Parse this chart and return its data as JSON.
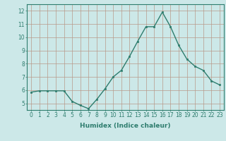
{
  "x": [
    0,
    1,
    2,
    3,
    4,
    5,
    6,
    7,
    8,
    9,
    10,
    11,
    12,
    13,
    14,
    15,
    16,
    17,
    18,
    19,
    20,
    21,
    22,
    23
  ],
  "y": [
    5.85,
    5.95,
    5.95,
    5.95,
    5.95,
    5.15,
    4.85,
    4.6,
    5.3,
    6.1,
    7.0,
    7.5,
    8.55,
    9.7,
    10.8,
    10.8,
    11.9,
    10.8,
    9.4,
    8.35,
    7.8,
    7.5,
    6.7,
    6.4
  ],
  "line_color": "#2e7d6e",
  "marker": "s",
  "marker_size": 2.0,
  "linewidth": 1.0,
  "xlabel": "Humidex (Indice chaleur)",
  "xlabel_fontsize": 6.5,
  "xlim": [
    -0.5,
    23.5
  ],
  "ylim": [
    4.5,
    12.5
  ],
  "yticks": [
    5,
    6,
    7,
    8,
    9,
    10,
    11,
    12
  ],
  "xticks": [
    0,
    1,
    2,
    3,
    4,
    5,
    6,
    7,
    8,
    9,
    10,
    11,
    12,
    13,
    14,
    15,
    16,
    17,
    18,
    19,
    20,
    21,
    22,
    23
  ],
  "bg_color": "#cce8e8",
  "grid_color": "#b8998a",
  "tick_fontsize": 5.5
}
